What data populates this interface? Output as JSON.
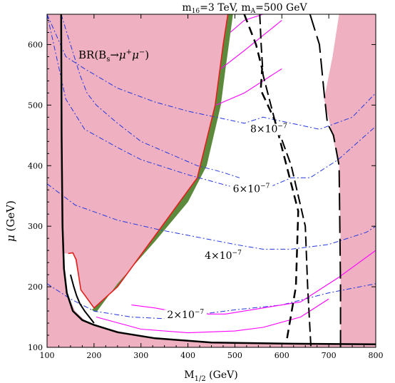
{
  "chart_data": {
    "type": "contour",
    "title": "m16=3 TeV,  mA=500 GeV",
    "title_parts": {
      "m": "m",
      "s1": "16",
      "eq1": "=3 TeV,  m",
      "s2": "A",
      "eq2": "=500 GeV"
    },
    "xlabel": "M1/2 (GeV)",
    "xlabel_parts": {
      "main": "M",
      "sub": "1/2",
      "unit": " (GeV)"
    },
    "ylabel": "μ (GeV)",
    "ylabel_parts": {
      "mu": "μ",
      "unit": " (GeV)"
    },
    "xlim": [
      100,
      800
    ],
    "ylim": [
      100,
      650
    ],
    "xticks": [
      100,
      200,
      300,
      400,
      500,
      600,
      700,
      800
    ],
    "yticks": [
      100,
      200,
      300,
      400,
      500,
      600
    ],
    "panel_label": "BR(Bs→μ+μ−)",
    "panel_label_parts": {
      "pre": "BR(B",
      "sub": "s",
      "arrow": "→μ",
      "sup1": "+",
      "mid": "μ",
      "sup2": "−",
      "post": ")"
    },
    "colors": {
      "excluded": "#efb1c1",
      "green_band": "#5b8a3c",
      "red": "#e0201c",
      "magenta": "#ff00ff",
      "blue": "#2438dc",
      "black": "#000000"
    },
    "excluded_left": [
      [
        100,
        650
      ],
      [
        129,
        650
      ],
      [
        131,
        450
      ],
      [
        133,
        300
      ],
      [
        137,
        220
      ],
      [
        145,
        185
      ],
      [
        160,
        160
      ],
      [
        180,
        145
      ],
      [
        200,
        137
      ],
      [
        260,
        125
      ],
      [
        330,
        115
      ],
      [
        450,
        108
      ],
      [
        620,
        106
      ],
      [
        800,
        104
      ],
      [
        800,
        100
      ],
      [
        100,
        100
      ]
    ],
    "excluded_right": [
      [
        800,
        650
      ],
      [
        722,
        650
      ],
      [
        708,
        580
      ],
      [
        690,
        510
      ],
      [
        702,
        470
      ],
      [
        722,
        400
      ],
      [
        725,
        280
      ],
      [
        725,
        100
      ],
      [
        800,
        100
      ]
    ],
    "excluded_wedge": [
      [
        145,
        255
      ],
      [
        155,
        255
      ],
      [
        160,
        245
      ],
      [
        172,
        195
      ],
      [
        200,
        165
      ],
      [
        250,
        200
      ],
      [
        340,
        295
      ],
      [
        420,
        380
      ],
      [
        458,
        500
      ],
      [
        475,
        600
      ],
      [
        485,
        650
      ],
      [
        100,
        650
      ],
      [
        100,
        255
      ]
    ],
    "green_band": [
      [
        200,
        165
      ],
      [
        250,
        200
      ],
      [
        340,
        295
      ],
      [
        420,
        380
      ],
      [
        458,
        500
      ],
      [
        475,
        600
      ],
      [
        485,
        650
      ],
      [
        496,
        650
      ],
      [
        480,
        560
      ],
      [
        470,
        500
      ],
      [
        440,
        400
      ],
      [
        400,
        340
      ],
      [
        330,
        275
      ],
      [
        250,
        205
      ],
      [
        205,
        158
      ],
      [
        195,
        162
      ]
    ],
    "red_line": [
      [
        145,
        255
      ],
      [
        155,
        256
      ],
      [
        162,
        245
      ],
      [
        172,
        195
      ],
      [
        200,
        165
      ],
      [
        250,
        200
      ],
      [
        340,
        295
      ],
      [
        420,
        380
      ],
      [
        458,
        500
      ],
      [
        475,
        600
      ],
      [
        485,
        650
      ]
    ],
    "left_boundary": [
      [
        130,
        650
      ],
      [
        131,
        450
      ],
      [
        133,
        300
      ],
      [
        136,
        230
      ],
      [
        142,
        190
      ],
      [
        155,
        160
      ],
      [
        175,
        145
      ],
      [
        200,
        137
      ],
      [
        250,
        125
      ],
      [
        330,
        115
      ],
      [
        450,
        108
      ],
      [
        620,
        106
      ],
      [
        800,
        105
      ]
    ],
    "lower_black": [
      [
        150,
        220
      ],
      [
        157,
        200
      ],
      [
        163,
        185
      ],
      [
        170,
        172
      ],
      [
        180,
        160
      ],
      [
        200,
        140
      ]
    ],
    "right_solid": [
      [
        553,
        650
      ],
      [
        556,
        600
      ],
      [
        560,
        550
      ],
      [
        585,
        475
      ],
      [
        620,
        400
      ],
      [
        650,
        300
      ],
      [
        655,
        200
      ],
      [
        662,
        100
      ]
    ],
    "right_long_dash": [
      [
        660,
        650
      ],
      [
        680,
        600
      ],
      [
        690,
        520
      ],
      [
        697,
        470
      ],
      [
        710,
        450
      ],
      [
        722,
        400
      ],
      [
        725,
        200
      ],
      [
        725,
        100
      ]
    ],
    "inner_dashed": [
      [
        520,
        650
      ],
      [
        545,
        600
      ],
      [
        558,
        560
      ],
      [
        555,
        525
      ],
      [
        585,
        475
      ],
      [
        605,
        415
      ],
      [
        635,
        325
      ],
      [
        630,
        200
      ],
      [
        610,
        110
      ]
    ],
    "magenta_lines": [
      [
        [
          205,
          150
        ],
        [
          300,
          130
        ],
        [
          400,
          124
        ],
        [
          500,
          127
        ],
        [
          560,
          133
        ],
        [
          640,
          150
        ],
        [
          700,
          180
        ]
      ],
      [
        [
          280,
          170
        ],
        [
          330,
          165
        ],
        [
          400,
          155
        ],
        [
          480,
          155
        ],
        [
          560,
          165
        ],
        [
          640,
          175
        ],
        [
          720,
          215
        ],
        [
          800,
          260
        ]
      ],
      [
        [
          460,
          500
        ],
        [
          520,
          520
        ],
        [
          560,
          540
        ],
        [
          600,
          560
        ]
      ],
      [
        [
          470,
          560
        ],
        [
          520,
          590
        ],
        [
          560,
          615
        ],
        [
          600,
          640
        ]
      ],
      [
        [
          490,
          620
        ],
        [
          520,
          640
        ],
        [
          560,
          650
        ]
      ],
      [
        [
          560,
          660
        ],
        [
          600,
          690
        ],
        [
          700,
          700
        ]
      ]
    ],
    "blue_contours": [
      [
        [
          100,
          650
        ],
        [
          140,
          580
        ],
        [
          180,
          560
        ],
        [
          250,
          528
        ],
        [
          330,
          505
        ],
        [
          400,
          490
        ],
        [
          460,
          480
        ],
        [
          520,
          470
        ],
        [
          560,
          480
        ],
        [
          620,
          470
        ],
        [
          680,
          460
        ],
        [
          750,
          480
        ],
        [
          800,
          520
        ]
      ],
      [
        [
          100,
          650
        ],
        [
          140,
          510
        ],
        [
          180,
          460
        ],
        [
          250,
          430
        ],
        [
          300,
          410
        ],
        [
          400,
          385
        ],
        [
          470,
          370
        ],
        [
          510,
          362
        ],
        [
          560,
          360
        ],
        [
          620,
          380
        ],
        [
          660,
          380
        ],
        [
          720,
          410
        ],
        [
          800,
          465
        ]
      ],
      [
        [
          100,
          370
        ],
        [
          160,
          335
        ],
        [
          250,
          310
        ],
        [
          340,
          294
        ],
        [
          400,
          285
        ],
        [
          500,
          270
        ],
        [
          560,
          262
        ],
        [
          620,
          262
        ],
        [
          700,
          270
        ],
        [
          780,
          290
        ],
        [
          800,
          300
        ]
      ],
      [
        [
          100,
          205
        ],
        [
          150,
          180
        ],
        [
          200,
          160
        ],
        [
          280,
          150
        ],
        [
          360,
          147
        ],
        [
          430,
          155
        ],
        [
          500,
          162
        ],
        [
          600,
          170
        ],
        [
          700,
          190
        ],
        [
          800,
          205
        ]
      ],
      [
        [
          130,
          650
        ],
        [
          150,
          600
        ],
        [
          170,
          550
        ],
        [
          185,
          520
        ],
        [
          205,
          500
        ],
        [
          250,
          470
        ],
        [
          300,
          440
        ],
        [
          360,
          420
        ],
        [
          420,
          400
        ],
        [
          470,
          390
        ],
        [
          510,
          380
        ]
      ]
    ],
    "contour_labels": [
      {
        "x": 572,
        "y": 455,
        "text": "8×10",
        "exp": "−7"
      },
      {
        "x": 535,
        "y": 356,
        "text": "6×10",
        "exp": "−7"
      },
      {
        "x": 475,
        "y": 246,
        "text": "4×10",
        "exp": "−7"
      },
      {
        "x": 395,
        "y": 148,
        "text": "2×10",
        "exp": "−7"
      }
    ]
  }
}
